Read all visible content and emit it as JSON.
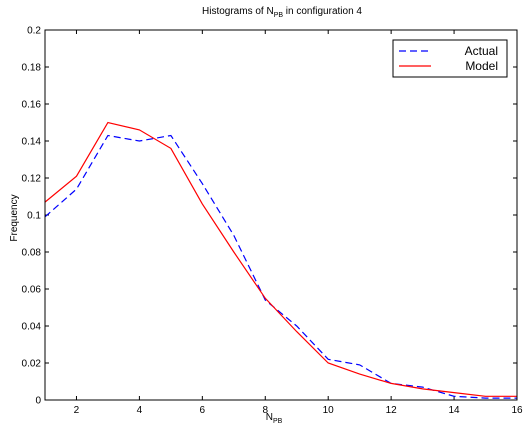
{
  "chart_data": {
    "type": "line",
    "title": {
      "main": "Histograms of N",
      "sub": "PB",
      "rest": " in configuration 4"
    },
    "xlabel": {
      "main": "N",
      "sub": "PB"
    },
    "ylabel": "Frequency",
    "xlim": [
      1,
      16
    ],
    "ylim": [
      0,
      0.2
    ],
    "x_ticks": [
      2,
      4,
      6,
      8,
      10,
      12,
      14,
      16
    ],
    "y_ticks": [
      0,
      0.02,
      0.04,
      0.06,
      0.08,
      0.1,
      0.12,
      0.14,
      0.16,
      0.18,
      0.2
    ],
    "y_tick_labels": [
      "0",
      "0.02",
      "0.04",
      "0.06",
      "0.08",
      "0.1",
      "0.12",
      "0.14",
      "0.16",
      "0.18",
      "0.2"
    ],
    "grid": false,
    "legend_position": "top-right",
    "series": [
      {
        "name": "Actual",
        "color": "#0000ff",
        "dash": "dashed",
        "x": [
          1,
          2,
          3,
          4,
          5,
          6,
          7,
          8,
          9,
          10,
          11,
          12,
          13,
          14,
          15,
          16
        ],
        "y": [
          0.099,
          0.114,
          0.143,
          0.14,
          0.143,
          0.117,
          0.089,
          0.054,
          0.04,
          0.022,
          0.019,
          0.009,
          0.007,
          0.002,
          0.001,
          0.001
        ]
      },
      {
        "name": "Model",
        "color": "#ff0000",
        "dash": "solid",
        "x": [
          1,
          2,
          3,
          4,
          5,
          6,
          7,
          8,
          9,
          10,
          11,
          12,
          13,
          14,
          15,
          16
        ],
        "y": [
          0.107,
          0.121,
          0.15,
          0.146,
          0.136,
          0.106,
          0.08,
          0.055,
          0.037,
          0.02,
          0.014,
          0.009,
          0.006,
          0.004,
          0.002,
          0.002
        ]
      }
    ]
  }
}
